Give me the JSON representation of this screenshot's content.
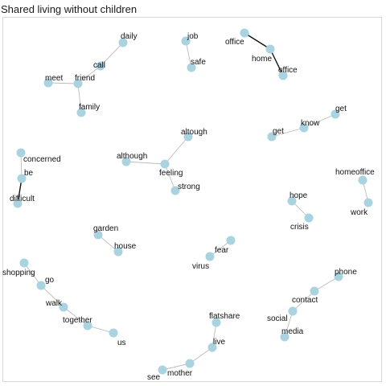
{
  "title": "Shared living without children",
  "colors": {
    "node": "#a8d3e0",
    "edge_light": "#bcbcbc",
    "edge_dark": "#111111",
    "label": "#111111"
  },
  "nodes": [
    {
      "id": "daily",
      "label": "daily"
    },
    {
      "id": "call",
      "label": "call"
    },
    {
      "id": "friend",
      "label": "friend"
    },
    {
      "id": "meet",
      "label": "meet"
    },
    {
      "id": "family",
      "label": "family"
    },
    {
      "id": "job",
      "label": "job"
    },
    {
      "id": "safe",
      "label": "safe"
    },
    {
      "id": "office1",
      "label": "office"
    },
    {
      "id": "home",
      "label": "home"
    },
    {
      "id": "office2",
      "label": "office"
    },
    {
      "id": "get1",
      "label": "get"
    },
    {
      "id": "know",
      "label": "know"
    },
    {
      "id": "get2",
      "label": "get"
    },
    {
      "id": "concerned",
      "label": "concerned"
    },
    {
      "id": "be",
      "label": "be"
    },
    {
      "id": "difficult",
      "label": "difficult"
    },
    {
      "id": "altough",
      "label": "altough"
    },
    {
      "id": "although",
      "label": "although"
    },
    {
      "id": "feeling",
      "label": "feeling"
    },
    {
      "id": "strong",
      "label": "strong"
    },
    {
      "id": "homeoffice",
      "label": "homeoffice"
    },
    {
      "id": "work",
      "label": "work"
    },
    {
      "id": "hope",
      "label": "hope"
    },
    {
      "id": "crisis",
      "label": "crisis"
    },
    {
      "id": "garden",
      "label": "garden"
    },
    {
      "id": "house",
      "label": "house"
    },
    {
      "id": "fear",
      "label": "fear"
    },
    {
      "id": "virus",
      "label": "virus"
    },
    {
      "id": "shopping",
      "label": "shopping"
    },
    {
      "id": "go",
      "label": "go"
    },
    {
      "id": "walk",
      "label": "walk"
    },
    {
      "id": "together",
      "label": "together"
    },
    {
      "id": "us",
      "label": "us"
    },
    {
      "id": "phone",
      "label": "phone"
    },
    {
      "id": "contact",
      "label": "contact"
    },
    {
      "id": "social",
      "label": "social"
    },
    {
      "id": "media",
      "label": "media"
    },
    {
      "id": "flatshare",
      "label": "flatshare"
    },
    {
      "id": "live",
      "label": "live"
    },
    {
      "id": "mother",
      "label": "mother"
    },
    {
      "id": "see",
      "label": "see"
    }
  ],
  "edges": [
    {
      "from": "daily",
      "to": "call",
      "strength": "light"
    },
    {
      "from": "call",
      "to": "friend",
      "strength": "light"
    },
    {
      "from": "friend",
      "to": "meet",
      "strength": "light"
    },
    {
      "from": "friend",
      "to": "family",
      "strength": "light"
    },
    {
      "from": "job",
      "to": "safe",
      "strength": "light"
    },
    {
      "from": "office1",
      "to": "home",
      "strength": "dark"
    },
    {
      "from": "home",
      "to": "office2",
      "strength": "dark"
    },
    {
      "from": "get1",
      "to": "know",
      "strength": "light"
    },
    {
      "from": "know",
      "to": "get2",
      "strength": "light"
    },
    {
      "from": "concerned",
      "to": "be",
      "strength": "light"
    },
    {
      "from": "be",
      "to": "difficult",
      "strength": "dark"
    },
    {
      "from": "altough",
      "to": "feeling",
      "strength": "light"
    },
    {
      "from": "although",
      "to": "feeling",
      "strength": "light"
    },
    {
      "from": "feeling",
      "to": "strong",
      "strength": "light"
    },
    {
      "from": "homeoffice",
      "to": "work",
      "strength": "light"
    },
    {
      "from": "hope",
      "to": "crisis",
      "strength": "light"
    },
    {
      "from": "garden",
      "to": "house",
      "strength": "light"
    },
    {
      "from": "fear",
      "to": "virus",
      "strength": "light"
    },
    {
      "from": "shopping",
      "to": "go",
      "strength": "light"
    },
    {
      "from": "go",
      "to": "walk",
      "strength": "light"
    },
    {
      "from": "walk",
      "to": "together",
      "strength": "light"
    },
    {
      "from": "together",
      "to": "us",
      "strength": "light"
    },
    {
      "from": "phone",
      "to": "contact",
      "strength": "light"
    },
    {
      "from": "contact",
      "to": "social",
      "strength": "light"
    },
    {
      "from": "social",
      "to": "media",
      "strength": "light"
    },
    {
      "from": "flatshare",
      "to": "live",
      "strength": "light"
    },
    {
      "from": "live",
      "to": "mother",
      "strength": "light"
    },
    {
      "from": "mother",
      "to": "see",
      "strength": "light"
    }
  ]
}
